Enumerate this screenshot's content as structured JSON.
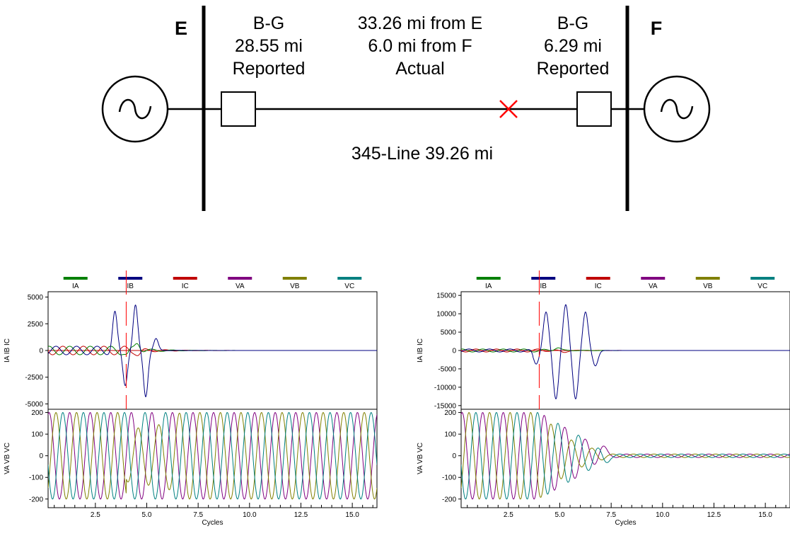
{
  "diagram": {
    "bus_e_label": "E",
    "bus_f_label": "F",
    "relay_e": [
      "B-G",
      "28.55 mi",
      "Reported"
    ],
    "relay_f": [
      "B-G",
      "6.29 mi",
      "Reported"
    ],
    "actual": [
      "33.26 mi from E",
      "6.0 mi from F",
      "Actual"
    ],
    "line_label": "345-Line 39.26 mi",
    "fault_color": "#ff0000"
  },
  "chart_data": [
    {
      "type": "line",
      "legend": [
        {
          "name": "IA",
          "color": "#008000"
        },
        {
          "name": "IB",
          "color": "#000080"
        },
        {
          "name": "IC",
          "color": "#c00000"
        },
        {
          "name": "VA",
          "color": "#800080"
        },
        {
          "name": "VB",
          "color": "#808000"
        },
        {
          "name": "VC",
          "color": "#008080"
        }
      ],
      "current_panel": {
        "ylabel": "IA IB IC",
        "yticks": [
          "5000",
          "2500",
          "0",
          "-2500",
          "-5000"
        ],
        "ylim": [
          -5500,
          5500
        ],
        "prefault_amplitude": 400,
        "fault_peaks": [
          3600,
          -3200,
          4200,
          -4300,
          1100
        ],
        "post_fault_value": 0
      },
      "voltage_panel": {
        "ylabel": "VA VB VC",
        "yticks": [
          "200",
          "100",
          "0",
          "-100",
          "-200"
        ],
        "ylim": [
          -240,
          215
        ],
        "prefault_amplitude": 200,
        "fault_dip_amplitude": 120,
        "post_fault_amplitude": 200
      },
      "xlabel": "Cycles",
      "xticks": [
        "2.5",
        "5.0",
        "7.5",
        "10.0",
        "12.5",
        "15.0"
      ],
      "xlim": [
        0.2,
        16.2
      ],
      "trigger_cycle": 4.0
    },
    {
      "type": "line",
      "legend": [
        {
          "name": "IA",
          "color": "#008000"
        },
        {
          "name": "IB",
          "color": "#000080"
        },
        {
          "name": "IC",
          "color": "#c00000"
        },
        {
          "name": "VA",
          "color": "#800080"
        },
        {
          "name": "VB",
          "color": "#808000"
        },
        {
          "name": "VC",
          "color": "#008080"
        }
      ],
      "current_panel": {
        "ylabel": "IA IB IC",
        "yticks": [
          "15000",
          "10000",
          "5000",
          "0",
          "-5000",
          "-10000",
          "-15000"
        ],
        "ylim": [
          -16000,
          16000
        ],
        "prefault_amplitude": 400,
        "fault_peaks": [
          -3700,
          10500,
          -13200,
          12500,
          -13200,
          10500,
          -4200
        ],
        "post_fault_value": 0
      },
      "voltage_panel": {
        "ylabel": "VA VB VC",
        "yticks": [
          "200",
          "100",
          "0",
          "-100",
          "-200"
        ],
        "ylim": [
          -240,
          215
        ],
        "prefault_amplitude": 200,
        "decay_end_cycle": 7.5,
        "post_fault_amplitude": 8
      },
      "xlabel": "Cycles",
      "xticks": [
        "2.5",
        "5.0",
        "7.5",
        "10.0",
        "12.5",
        "15.0"
      ],
      "xlim": [
        0.2,
        16.2
      ],
      "trigger_cycle": 4.0
    }
  ]
}
